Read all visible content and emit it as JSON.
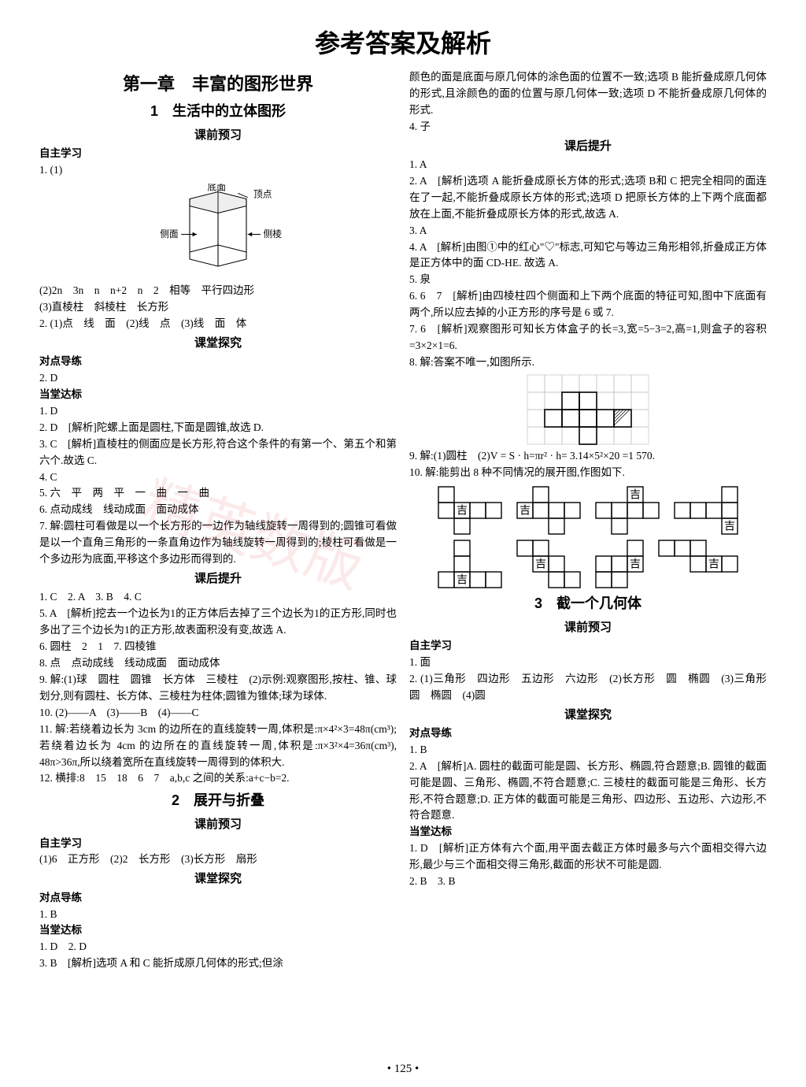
{
  "main_title": "参考答案及解析",
  "page_number": "• 125 •",
  "watermark": "精英数版",
  "left": {
    "chapter": "第一章　丰富的图形世界",
    "sec1_title": "1　生活中的立体图形",
    "preview": "课前预习",
    "zizhu": "自主学习",
    "l1": "1. (1)",
    "prism_labels": {
      "top": "底面",
      "vertex": "顶点",
      "side": "侧面",
      "edge": "侧棱"
    },
    "l2": "(2)2n　3n　n　n+2　n　2　相等　平行四边形",
    "l3": "(3)直棱柱　斜棱柱　长方形",
    "l4": "2. (1)点　线　面　(2)线　点　(3)线　面　体",
    "ketang": "课堂探究",
    "duidian": "对点导练",
    "l5": "2. D",
    "dangtang": "当堂达标",
    "l6": "1. D",
    "l7": "2. D　[解析]陀螺上面是圆柱,下面是圆锥,故选 D.",
    "l8": "3. C　[解析]直棱柱的侧面应是长方形,符合这个条件的有第一个、第五个和第六个.故选 C.",
    "l9": "4. C",
    "l10": "5. 六　平　两　平　一　曲　一　曲",
    "l11": "6. 点动成线　线动成面　面动成体",
    "l12": "7. 解:圆柱可看做是以一个长方形的一边作为轴线旋转一周得到的;圆锥可看做是以一个直角三角形的一条直角边作为轴线旋转一周得到的;棱柱可看做是一个多边形为底面,平移这个多边形而得到的.",
    "kehou": "课后提升",
    "l13": "1. C　2. A　3. B　4. C",
    "l14": "5. A　[解析]挖去一个边长为1的正方体后去掉了三个边长为1的正方形,同时也多出了三个边长为1的正方形,故表面积没有变,故选 A.",
    "l15": "6. 圆柱　2　1　7. 四棱锥",
    "l16": "8. 点　点动成线　线动成面　面动成体",
    "l17": "9. 解:(1)球　圆柱　圆锥　长方体　三棱柱　(2)示例:观察图形,按柱、锥、球划分,则有圆柱、长方体、三棱柱为柱体;圆锥为锥体;球为球体.",
    "l18": "10. (2)——A　(3)——B　(4)——C",
    "l19": "11. 解:若绕着边长为 3cm 的边所在的直线旋转一周,体积是:π×4²×3=48π(cm³);若绕着边长为 4cm 的边所在的直线旋转一周,体积是:π×3²×4=36π(cm³), 48π>36π,所以绕着宽所在直线旋转一周得到的体积大.",
    "l20": "12. 横排:8　15　18　6　7　a,b,c 之间的关系:a+c−b=2.",
    "sec2_title": "2　展开与折叠",
    "l21": "(1)6　正方形　(2)2　长方形　(3)长方形　扇形",
    "l22": "1. B",
    "l23": "1. D　2. D",
    "l24": "3. B　[解析]选项 A 和 C 能折成原几何体的形式;但涂"
  },
  "right": {
    "r1": "颜色的面是底面与原几何体的涂色面的位置不一致;选项 B 能折叠成原几何体的形式,且涂颜色的面的位置与原几何体一致;选项 D 不能折叠成原几何体的形式.",
    "r2": "4. 子",
    "kehou": "课后提升",
    "r3": "1. A",
    "r4": "2. A　[解析]选项 A 能折叠成原长方体的形式;选项 B和 C 把完全相同的面连在了一起,不能折叠成原长方体的形式;选项 D 把原长方体的上下两个底面都放在上面,不能折叠成原长方体的形式,故选 A.",
    "r5": "3. A",
    "r6": "4. A　[解析]由图①中的红心\"♡\"标志,可知它与等边三角形相邻,折叠成正方体是正方体中的面 CD-HE. 故选 A.",
    "r7": "5. 泉",
    "r8": "6. 6　7　[解析]由四棱柱四个侧面和上下两个底面的特征可知,图中下底面有两个,所以应去掉的小正方形的序号是 6 或 7.",
    "r9": "7. 6　[解析]观察图形可知长方体盒子的长=3,宽=5−3=2,高=1,则盒子的容积=3×2×1=6.",
    "r10": "8. 解:答案不唯一,如图所示.",
    "r11": "9. 解:(1)圆柱　(2)V = S · h=πr² · h= 3.14×5²×20 =1 570.",
    "r12": "10. 解:能剪出 8 种不同情况的展开图,作图如下.",
    "ji": "吉",
    "sec3_title": "3　截一个几何体",
    "preview": "课前预习",
    "zizhu": "自主学习",
    "r13": "1. 面",
    "r14": "2. (1)三角形　四边形　五边形　六边形　(2)长方形　圆　椭圆　(3)三角形　圆　椭圆　(4)圆",
    "ketang": "课堂探究",
    "duidian": "对点导练",
    "r15": "1. B",
    "r16": "2. A　[解析]A. 圆柱的截面可能是圆、长方形、椭圆,符合题意;B. 圆锥的截面可能是圆、三角形、椭圆,不符合题意;C. 三棱柱的截面可能是三角形、长方形,不符合题意;D. 正方体的截面可能是三角形、四边形、五边形、六边形,不符合题意.",
    "dangtang": "当堂达标",
    "r17": "1. D　[解析]正方体有六个面,用平面去截正方体时最多与六个面相交得六边形,最少与三个面相交得三角形,截面的形状不可能是圆.",
    "r18": "2. B　3. B"
  },
  "grid8": {
    "cols": 7,
    "rows": 4,
    "fill": [
      [
        1,
        2
      ],
      [
        1,
        3
      ],
      [
        2,
        1
      ],
      [
        2,
        2
      ],
      [
        2,
        3
      ],
      [
        2,
        4
      ],
      [
        2,
        5
      ],
      [
        3,
        3
      ]
    ],
    "cell": 22,
    "stroke": "#000"
  },
  "nets": {
    "cell": 20,
    "stroke": "#000",
    "ji_char": "吉"
  }
}
